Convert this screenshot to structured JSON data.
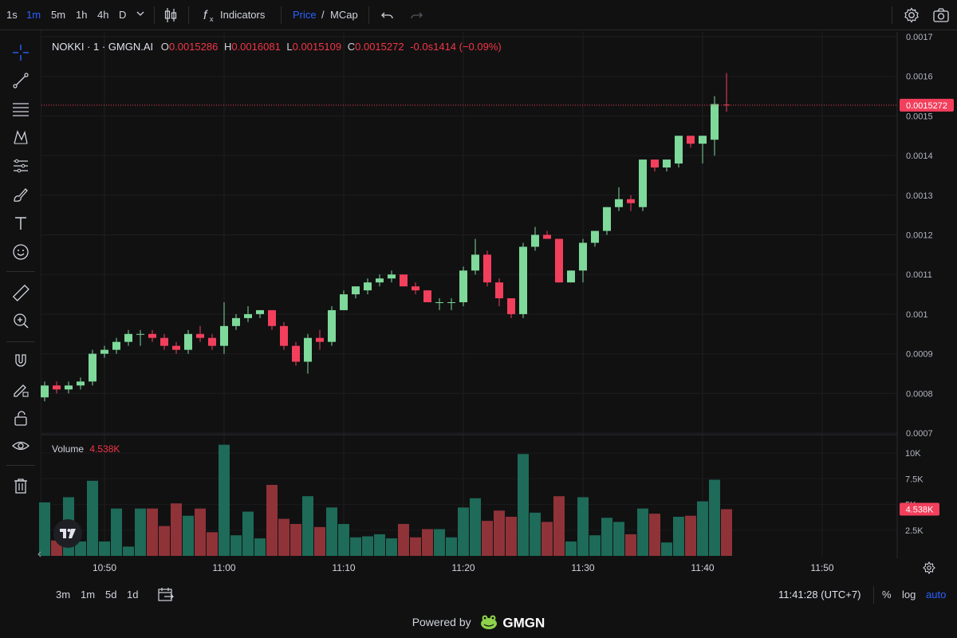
{
  "toolbar": {
    "timeframes": [
      "1s",
      "1m",
      "5m",
      "1h",
      "4h",
      "D"
    ],
    "active_timeframe": "1m",
    "indicators_label": "Indicators",
    "price_label": "Price",
    "slash": "/",
    "mcap_label": "MCap"
  },
  "legend": {
    "symbol": "NOKKI · 1 · GMGN.AI",
    "o_label": "O",
    "o_value": "0.0015286",
    "h_label": "H",
    "h_value": "0.0016081",
    "l_label": "L",
    "l_value": "0.0015109",
    "c_label": "C",
    "c_value": "0.0015272",
    "change": "-0.0s1414 (−0.09%)"
  },
  "volume_legend": {
    "label": "Volume",
    "value": "4.538K"
  },
  "price_badge": "0.0015272",
  "volume_badge": "4.538K",
  "bottom": {
    "ranges": [
      "3m",
      "1m",
      "5d",
      "1d"
    ],
    "clock": "11:41:28 (UTC+7)",
    "percent": "%",
    "log": "log",
    "auto": "auto"
  },
  "footer": {
    "powered_by": "Powered by",
    "brand": "GMGN"
  },
  "colors": {
    "up": "#7ed99a",
    "down": "#f23f5c",
    "vol_up": "#1d6b58",
    "vol_down": "#8f3338",
    "accent": "#2962ff",
    "background": "#111112"
  },
  "chart_data": {
    "type": "candlestick",
    "price_axis": {
      "ticks": [
        "0.0017",
        "0.0016",
        "0.0015",
        "0.0014",
        "0.0013",
        "0.0012",
        "0.0011",
        "0.001",
        "0.0009",
        "0.0008",
        "0.0007"
      ],
      "tick_values": [
        0.0017,
        0.0016,
        0.0015,
        0.0014,
        0.0013,
        0.0012,
        0.0011,
        0.001,
        0.0009,
        0.0008,
        0.0007
      ],
      "range": [
        0.0007,
        0.0017
      ]
    },
    "volume_axis": {
      "ticks": [
        "10K",
        "7.5K",
        "5K",
        "2.5K"
      ],
      "tick_values": [
        10000,
        7500,
        5000,
        2500
      ],
      "range": [
        0,
        11000
      ]
    },
    "time_axis": {
      "labels": [
        "10:50",
        "11:00",
        "11:10",
        "11:20",
        "11:30",
        "11:40",
        "11:50"
      ],
      "label_minutes": [
        650,
        660,
        670,
        680,
        690,
        700,
        710
      ]
    },
    "last_price": 0.0015272,
    "candles": [
      {
        "t": 645,
        "o": 0.00079,
        "h": 0.00083,
        "l": 0.00078,
        "c": 0.00082,
        "v": 5200
      },
      {
        "t": 646,
        "o": 0.00082,
        "h": 0.00083,
        "l": 0.0008,
        "c": 0.00081,
        "v": 1500
      },
      {
        "t": 647,
        "o": 0.00081,
        "h": 0.00083,
        "l": 0.0008,
        "c": 0.00082,
        "v": 5700
      },
      {
        "t": 648,
        "o": 0.00082,
        "h": 0.00084,
        "l": 0.00081,
        "c": 0.00083,
        "v": 1400
      },
      {
        "t": 649,
        "o": 0.00083,
        "h": 0.00091,
        "l": 0.00082,
        "c": 0.0009,
        "v": 7300
      },
      {
        "t": 650,
        "o": 0.0009,
        "h": 0.00092,
        "l": 0.00089,
        "c": 0.00091,
        "v": 1400
      },
      {
        "t": 651,
        "o": 0.00091,
        "h": 0.00094,
        "l": 0.0009,
        "c": 0.00093,
        "v": 4600
      },
      {
        "t": 652,
        "o": 0.00093,
        "h": 0.00096,
        "l": 0.00092,
        "c": 0.00095,
        "v": 900
      },
      {
        "t": 653,
        "o": 0.00095,
        "h": 0.00096,
        "l": 0.00092,
        "c": 0.00095,
        "v": 4600
      },
      {
        "t": 654,
        "o": 0.00095,
        "h": 0.00096,
        "l": 0.00093,
        "c": 0.00094,
        "v": 4600
      },
      {
        "t": 655,
        "o": 0.00094,
        "h": 0.00095,
        "l": 0.00091,
        "c": 0.00092,
        "v": 2900
      },
      {
        "t": 656,
        "o": 0.00092,
        "h": 0.00093,
        "l": 0.0009,
        "c": 0.00091,
        "v": 5100
      },
      {
        "t": 657,
        "o": 0.00091,
        "h": 0.00096,
        "l": 0.0009,
        "c": 0.00095,
        "v": 3900
      },
      {
        "t": 658,
        "o": 0.00095,
        "h": 0.00097,
        "l": 0.00093,
        "c": 0.00094,
        "v": 4600
      },
      {
        "t": 659,
        "o": 0.00094,
        "h": 0.00095,
        "l": 0.00091,
        "c": 0.00092,
        "v": 2300
      },
      {
        "t": 660,
        "o": 0.00092,
        "h": 0.00103,
        "l": 0.0009,
        "c": 0.00097,
        "v": 10800
      },
      {
        "t": 661,
        "o": 0.00097,
        "h": 0.001,
        "l": 0.00096,
        "c": 0.00099,
        "v": 2000
      },
      {
        "t": 662,
        "o": 0.00099,
        "h": 0.00102,
        "l": 0.00098,
        "c": 0.001,
        "v": 4300
      },
      {
        "t": 663,
        "o": 0.001,
        "h": 0.00101,
        "l": 0.00099,
        "c": 0.00101,
        "v": 1700
      },
      {
        "t": 664,
        "o": 0.00101,
        "h": 0.00101,
        "l": 0.00096,
        "c": 0.00097,
        "v": 6900
      },
      {
        "t": 665,
        "o": 0.00097,
        "h": 0.00098,
        "l": 0.00091,
        "c": 0.00092,
        "v": 3600
      },
      {
        "t": 666,
        "o": 0.00092,
        "h": 0.00093,
        "l": 0.00087,
        "c": 0.00088,
        "v": 3100
      },
      {
        "t": 667,
        "o": 0.00088,
        "h": 0.00095,
        "l": 0.00085,
        "c": 0.00094,
        "v": 5800
      },
      {
        "t": 668,
        "o": 0.00094,
        "h": 0.00096,
        "l": 0.00091,
        "c": 0.00093,
        "v": 2800
      },
      {
        "t": 669,
        "o": 0.00093,
        "h": 0.00102,
        "l": 0.00092,
        "c": 0.00101,
        "v": 4700
      },
      {
        "t": 670,
        "o": 0.00101,
        "h": 0.00106,
        "l": 0.00101,
        "c": 0.00105,
        "v": 3100
      },
      {
        "t": 671,
        "o": 0.00105,
        "h": 0.00107,
        "l": 0.00104,
        "c": 0.00107,
        "v": 1800
      },
      {
        "t": 672,
        "o": 0.00106,
        "h": 0.00109,
        "l": 0.00105,
        "c": 0.00108,
        "v": 1900
      },
      {
        "t": 673,
        "o": 0.00108,
        "h": 0.0011,
        "l": 0.00107,
        "c": 0.00109,
        "v": 2100
      },
      {
        "t": 674,
        "o": 0.00109,
        "h": 0.00111,
        "l": 0.00108,
        "c": 0.0011,
        "v": 1700
      },
      {
        "t": 675,
        "o": 0.0011,
        "h": 0.0011,
        "l": 0.00107,
        "c": 0.00107,
        "v": 3100
      },
      {
        "t": 676,
        "o": 0.00107,
        "h": 0.00108,
        "l": 0.00105,
        "c": 0.00106,
        "v": 1800
      },
      {
        "t": 677,
        "o": 0.00106,
        "h": 0.00106,
        "l": 0.00103,
        "c": 0.00103,
        "v": 2600
      },
      {
        "t": 678,
        "o": 0.00103,
        "h": 0.00104,
        "l": 0.00101,
        "c": 0.00103,
        "v": 2600
      },
      {
        "t": 679,
        "o": 0.00103,
        "h": 0.00104,
        "l": 0.00101,
        "c": 0.00103,
        "v": 1800
      },
      {
        "t": 680,
        "o": 0.00103,
        "h": 0.00112,
        "l": 0.00102,
        "c": 0.00111,
        "v": 4700
      },
      {
        "t": 681,
        "o": 0.00111,
        "h": 0.00119,
        "l": 0.0011,
        "c": 0.00115,
        "v": 5600
      },
      {
        "t": 682,
        "o": 0.00115,
        "h": 0.00116,
        "l": 0.00107,
        "c": 0.00108,
        "v": 3400
      },
      {
        "t": 683,
        "o": 0.00108,
        "h": 0.00109,
        "l": 0.00102,
        "c": 0.00104,
        "v": 4400
      },
      {
        "t": 684,
        "o": 0.00104,
        "h": 0.00104,
        "l": 0.00099,
        "c": 0.001,
        "v": 3800
      },
      {
        "t": 685,
        "o": 0.001,
        "h": 0.00118,
        "l": 0.00099,
        "c": 0.00117,
        "v": 9900
      },
      {
        "t": 686,
        "o": 0.00117,
        "h": 0.00122,
        "l": 0.00116,
        "c": 0.0012,
        "v": 4200
      },
      {
        "t": 687,
        "o": 0.0012,
        "h": 0.00121,
        "l": 0.00119,
        "c": 0.00119,
        "v": 3300
      },
      {
        "t": 688,
        "o": 0.00119,
        "h": 0.00119,
        "l": 0.00108,
        "c": 0.00108,
        "v": 5800
      },
      {
        "t": 689,
        "o": 0.00108,
        "h": 0.00111,
        "l": 0.00108,
        "c": 0.00111,
        "v": 1400
      },
      {
        "t": 690,
        "o": 0.00111,
        "h": 0.00119,
        "l": 0.00108,
        "c": 0.00118,
        "v": 5700
      },
      {
        "t": 691,
        "o": 0.00118,
        "h": 0.00121,
        "l": 0.00117,
        "c": 0.00121,
        "v": 2000
      },
      {
        "t": 692,
        "o": 0.00121,
        "h": 0.00127,
        "l": 0.0012,
        "c": 0.00127,
        "v": 3700
      },
      {
        "t": 693,
        "o": 0.00127,
        "h": 0.00132,
        "l": 0.00126,
        "c": 0.00129,
        "v": 3300
      },
      {
        "t": 694,
        "o": 0.00129,
        "h": 0.0013,
        "l": 0.00126,
        "c": 0.00128,
        "v": 2100
      },
      {
        "t": 695,
        "o": 0.00127,
        "h": 0.00139,
        "l": 0.00126,
        "c": 0.00139,
        "v": 4600
      },
      {
        "t": 696,
        "o": 0.00139,
        "h": 0.00139,
        "l": 0.00136,
        "c": 0.00137,
        "v": 4100
      },
      {
        "t": 697,
        "o": 0.00137,
        "h": 0.00139,
        "l": 0.00136,
        "c": 0.00139,
        "v": 1300
      },
      {
        "t": 698,
        "o": 0.00138,
        "h": 0.00145,
        "l": 0.00137,
        "c": 0.00145,
        "v": 3800
      },
      {
        "t": 699,
        "o": 0.00145,
        "h": 0.00145,
        "l": 0.00142,
        "c": 0.00143,
        "v": 3900
      },
      {
        "t": 700,
        "o": 0.00143,
        "h": 0.00145,
        "l": 0.00138,
        "c": 0.00145,
        "v": 5300
      },
      {
        "t": 701,
        "o": 0.00144,
        "h": 0.00155,
        "l": 0.0014,
        "c": 0.00153,
        "v": 7400
      },
      {
        "t": 702,
        "o": 0.0015286,
        "h": 0.0016081,
        "l": 0.0015109,
        "c": 0.0015272,
        "v": 4538
      }
    ]
  }
}
